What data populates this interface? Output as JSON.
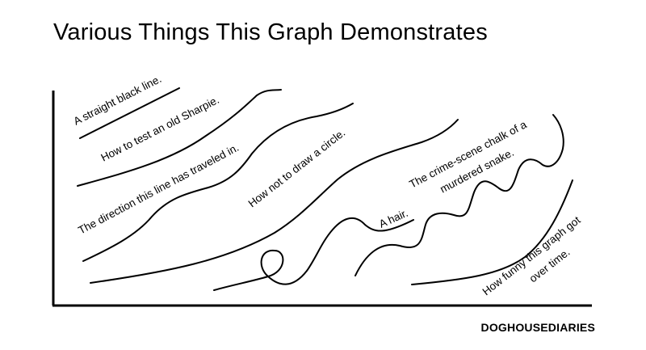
{
  "title": "Various Things This Graph Demonstrates",
  "credit": "DOGHOUSEDIARIES",
  "chart_data": {
    "type": "line",
    "title": "Various Things This Graph Demonstrates",
    "xlabel": "",
    "ylabel": "",
    "grid": false,
    "legend": "none",
    "series": [
      {
        "name": "A straight black line.",
        "values": []
      },
      {
        "name": "How to test an old Sharpie.",
        "values": []
      },
      {
        "name": "The direction this line has traveled in.",
        "values": []
      },
      {
        "name": "How not to draw a circle.",
        "values": []
      },
      {
        "name": "A hair.",
        "values": []
      },
      {
        "name": "The crime-scene chalk of a murdered snake.",
        "label_lines": [
          "The crime-scene chalk of a",
          "murdered snake."
        ],
        "values": []
      },
      {
        "name": "How funny this graph got over time.",
        "label_lines": [
          "How funny this graph got",
          "over time."
        ],
        "values": []
      }
    ]
  }
}
